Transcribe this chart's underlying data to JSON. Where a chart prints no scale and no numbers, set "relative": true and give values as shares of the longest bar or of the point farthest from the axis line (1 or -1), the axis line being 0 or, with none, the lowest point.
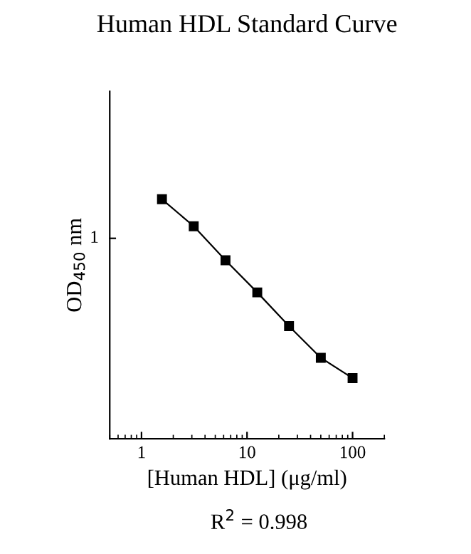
{
  "chart_data": {
    "type": "line",
    "title": "Human HDL Standard Curve",
    "xlabel": "[Human HDL] (μg/ml)",
    "ylabel": "OD$_{450}$ nm",
    "annotations": [
      "1",
      "R$^{2}$ = 0.998"
    ],
    "log": "x",
    "relative": true,
    "marker": "square",
    "line_style": "solid",
    "grid": false,
    "legend": false,
    "x": [
      1.5625,
      3.125,
      6.25,
      12.5,
      25,
      50,
      100
    ],
    "series": [
      {
        "color": "#000000",
        "values": [
          1,
          0.887,
          0.745,
          0.611,
          0.47,
          0.338,
          0.253
        ]
      }
    ],
    "xlim": [
      0.5,
      200
    ],
    "xticks": [
      1,
      10,
      100
    ]
  }
}
